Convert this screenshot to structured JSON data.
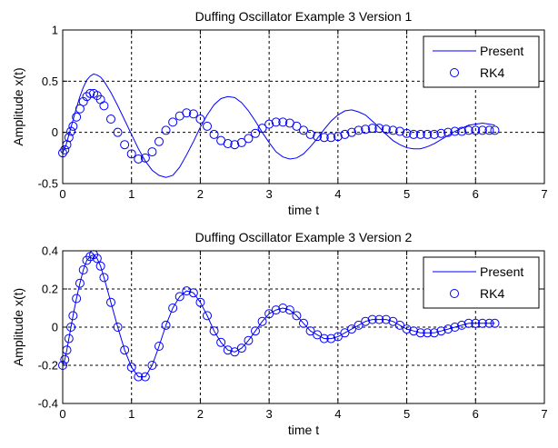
{
  "figure": {
    "background_color": "#ffffff",
    "line_color": "#0000ff",
    "marker_color": "#0000ff",
    "grid_color": "#000000"
  },
  "chart_data": [
    {
      "type": "line",
      "title": "Duffing Oscillator Example 3 Version 1",
      "xlabel": "time t",
      "ylabel": "Amplitude x(t)",
      "xlim": [
        0,
        7
      ],
      "ylim": [
        -0.5,
        1
      ],
      "xticks": [
        "0",
        "1",
        "2",
        "3",
        "4",
        "5",
        "6",
        "7"
      ],
      "yticks": [
        "-0.5",
        "0",
        "0.5",
        "1"
      ],
      "grid": true,
      "grid_style": "dashed",
      "legend_position": "top-right",
      "series": [
        {
          "name": "Present",
          "style": "line",
          "x": [
            0,
            0.05,
            0.1,
            0.15,
            0.2,
            0.25,
            0.3,
            0.35,
            0.4,
            0.45,
            0.5,
            0.55,
            0.6,
            0.7,
            0.8,
            0.9,
            1.0,
            1.1,
            1.2,
            1.3,
            1.4,
            1.5,
            1.6,
            1.7,
            1.8,
            1.9,
            2.0,
            2.1,
            2.2,
            2.3,
            2.4,
            2.5,
            2.6,
            2.7,
            2.8,
            2.9,
            3.0,
            3.1,
            3.2,
            3.3,
            3.4,
            3.5,
            3.6,
            3.7,
            3.8,
            3.9,
            4.0,
            4.1,
            4.2,
            4.3,
            4.4,
            4.5,
            4.6,
            4.7,
            4.8,
            4.9,
            5.0,
            5.1,
            5.2,
            5.3,
            5.4,
            5.5,
            5.6,
            5.7,
            5.8,
            5.9,
            6.0,
            6.1,
            6.2,
            6.28
          ],
          "y": [
            -0.2,
            -0.12,
            0.0,
            0.12,
            0.24,
            0.35,
            0.44,
            0.51,
            0.55,
            0.57,
            0.56,
            0.54,
            0.5,
            0.39,
            0.26,
            0.12,
            -0.02,
            -0.16,
            -0.28,
            -0.37,
            -0.42,
            -0.44,
            -0.42,
            -0.34,
            -0.22,
            -0.09,
            0.05,
            0.17,
            0.27,
            0.33,
            0.35,
            0.34,
            0.29,
            0.21,
            0.11,
            0.0,
            -0.1,
            -0.19,
            -0.24,
            -0.26,
            -0.25,
            -0.21,
            -0.14,
            -0.06,
            0.03,
            0.11,
            0.17,
            0.21,
            0.22,
            0.2,
            0.17,
            0.11,
            0.05,
            -0.02,
            -0.08,
            -0.12,
            -0.15,
            -0.16,
            -0.16,
            -0.14,
            -0.11,
            -0.07,
            -0.03,
            0.01,
            0.04,
            0.07,
            0.08,
            0.09,
            0.08,
            0.07
          ]
        },
        {
          "name": "RK4",
          "style": "marker",
          "x": [
            0,
            0.03,
            0.06,
            0.09,
            0.12,
            0.15,
            0.2,
            0.25,
            0.3,
            0.35,
            0.4,
            0.45,
            0.5,
            0.55,
            0.6,
            0.7,
            0.8,
            0.9,
            1.0,
            1.1,
            1.2,
            1.3,
            1.4,
            1.5,
            1.6,
            1.7,
            1.8,
            1.9,
            2.0,
            2.1,
            2.2,
            2.3,
            2.4,
            2.5,
            2.6,
            2.7,
            2.8,
            2.9,
            3.0,
            3.1,
            3.2,
            3.3,
            3.4,
            3.5,
            3.6,
            3.7,
            3.8,
            3.9,
            4.0,
            4.1,
            4.2,
            4.3,
            4.4,
            4.5,
            4.6,
            4.7,
            4.8,
            4.9,
            5.0,
            5.1,
            5.2,
            5.3,
            5.4,
            5.5,
            5.6,
            5.7,
            5.8,
            5.9,
            6.0,
            6.1,
            6.2,
            6.28
          ],
          "y": [
            -0.2,
            -0.17,
            -0.12,
            -0.05,
            0.01,
            0.06,
            0.15,
            0.23,
            0.3,
            0.35,
            0.38,
            0.38,
            0.36,
            0.32,
            0.26,
            0.13,
            0.0,
            -0.12,
            -0.21,
            -0.26,
            -0.25,
            -0.19,
            -0.09,
            0.02,
            0.1,
            0.16,
            0.19,
            0.18,
            0.13,
            0.06,
            -0.02,
            -0.08,
            -0.11,
            -0.12,
            -0.1,
            -0.06,
            -0.01,
            0.04,
            0.08,
            0.1,
            0.1,
            0.09,
            0.06,
            0.02,
            -0.02,
            -0.04,
            -0.05,
            -0.05,
            -0.04,
            -0.02,
            0.0,
            0.02,
            0.03,
            0.04,
            0.04,
            0.03,
            0.02,
            0.01,
            -0.01,
            -0.02,
            -0.02,
            -0.02,
            -0.02,
            -0.01,
            0.0,
            0.01,
            0.01,
            0.02,
            0.02,
            0.02,
            0.02,
            0.02
          ]
        }
      ]
    },
    {
      "type": "line",
      "title": "Duffing Oscillator Example 3 Version 2",
      "xlabel": "time t",
      "ylabel": "Amplitude x(t)",
      "xlim": [
        0,
        7
      ],
      "ylim": [
        -0.4,
        0.4
      ],
      "xticks": [
        "0",
        "1",
        "2",
        "3",
        "4",
        "5",
        "6",
        "7"
      ],
      "yticks": [
        "-0.4",
        "-0.2",
        "0",
        "0.2",
        "0.4"
      ],
      "grid": true,
      "grid_style": "dashed",
      "legend_position": "top-right",
      "series": [
        {
          "name": "Present",
          "style": "line",
          "x": [
            0,
            0.03,
            0.06,
            0.09,
            0.12,
            0.15,
            0.2,
            0.25,
            0.3,
            0.35,
            0.4,
            0.45,
            0.5,
            0.55,
            0.6,
            0.7,
            0.8,
            0.9,
            1.0,
            1.1,
            1.2,
            1.3,
            1.4,
            1.5,
            1.6,
            1.7,
            1.8,
            1.9,
            2.0,
            2.1,
            2.2,
            2.3,
            2.4,
            2.5,
            2.6,
            2.7,
            2.8,
            2.9,
            3.0,
            3.1,
            3.2,
            3.3,
            3.4,
            3.5,
            3.6,
            3.7,
            3.8,
            3.9,
            4.0,
            4.1,
            4.2,
            4.3,
            4.4,
            4.5,
            4.6,
            4.7,
            4.8,
            4.9,
            5.0,
            5.1,
            5.2,
            5.3,
            5.4,
            5.5,
            5.6,
            5.7,
            5.8,
            5.9,
            6.0,
            6.1,
            6.2,
            6.28
          ],
          "y": [
            -0.2,
            -0.17,
            -0.12,
            -0.06,
            0.0,
            0.06,
            0.15,
            0.23,
            0.3,
            0.35,
            0.37,
            0.38,
            0.36,
            0.32,
            0.26,
            0.13,
            0.0,
            -0.12,
            -0.21,
            -0.26,
            -0.26,
            -0.2,
            -0.1,
            0.01,
            0.1,
            0.16,
            0.19,
            0.18,
            0.13,
            0.06,
            -0.02,
            -0.08,
            -0.12,
            -0.13,
            -0.11,
            -0.07,
            -0.02,
            0.03,
            0.07,
            0.09,
            0.1,
            0.09,
            0.06,
            0.02,
            -0.02,
            -0.04,
            -0.06,
            -0.06,
            -0.05,
            -0.03,
            -0.01,
            0.01,
            0.03,
            0.04,
            0.04,
            0.04,
            0.03,
            0.01,
            -0.01,
            -0.02,
            -0.03,
            -0.03,
            -0.03,
            -0.02,
            -0.01,
            0.0,
            0.01,
            0.02,
            0.02,
            0.02,
            0.02,
            0.02
          ]
        },
        {
          "name": "RK4",
          "style": "marker",
          "x": [
            0,
            0.03,
            0.06,
            0.09,
            0.12,
            0.15,
            0.2,
            0.25,
            0.3,
            0.35,
            0.4,
            0.45,
            0.5,
            0.55,
            0.6,
            0.7,
            0.8,
            0.9,
            1.0,
            1.1,
            1.2,
            1.3,
            1.4,
            1.5,
            1.6,
            1.7,
            1.8,
            1.9,
            2.0,
            2.1,
            2.2,
            2.3,
            2.4,
            2.5,
            2.6,
            2.7,
            2.8,
            2.9,
            3.0,
            3.1,
            3.2,
            3.3,
            3.4,
            3.5,
            3.6,
            3.7,
            3.8,
            3.9,
            4.0,
            4.1,
            4.2,
            4.3,
            4.4,
            4.5,
            4.6,
            4.7,
            4.8,
            4.9,
            5.0,
            5.1,
            5.2,
            5.3,
            5.4,
            5.5,
            5.6,
            5.7,
            5.8,
            5.9,
            6.0,
            6.1,
            6.2,
            6.28
          ],
          "y": [
            -0.2,
            -0.17,
            -0.12,
            -0.06,
            0.0,
            0.06,
            0.15,
            0.23,
            0.3,
            0.35,
            0.37,
            0.38,
            0.36,
            0.32,
            0.26,
            0.13,
            0.0,
            -0.12,
            -0.21,
            -0.26,
            -0.26,
            -0.2,
            -0.1,
            0.01,
            0.1,
            0.16,
            0.19,
            0.18,
            0.13,
            0.06,
            -0.02,
            -0.08,
            -0.12,
            -0.13,
            -0.11,
            -0.07,
            -0.02,
            0.03,
            0.07,
            0.09,
            0.1,
            0.09,
            0.06,
            0.02,
            -0.02,
            -0.04,
            -0.06,
            -0.06,
            -0.05,
            -0.03,
            -0.01,
            0.01,
            0.03,
            0.04,
            0.04,
            0.04,
            0.03,
            0.01,
            -0.01,
            -0.02,
            -0.03,
            -0.03,
            -0.03,
            -0.02,
            -0.01,
            0.0,
            0.01,
            0.02,
            0.02,
            0.02,
            0.02,
            0.02
          ]
        }
      ]
    }
  ]
}
